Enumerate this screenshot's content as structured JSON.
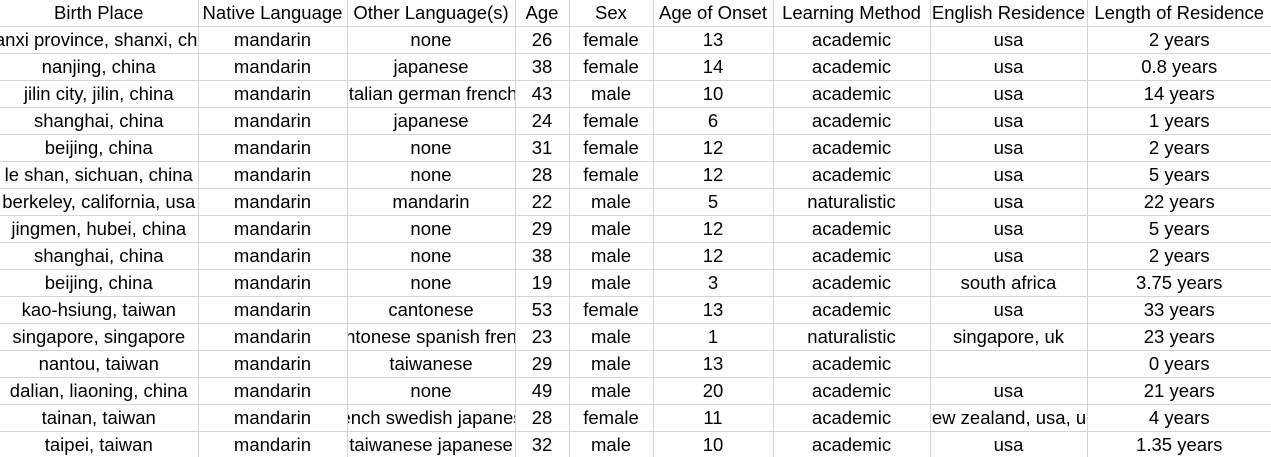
{
  "columns": [
    "Birth Place",
    "Native Language",
    "Other Language(s)",
    "Age",
    "Sex",
    "Age of Onset",
    "Learning Method",
    "English Residence",
    "Length of Residence"
  ],
  "rows": [
    [
      "shanxi province, shanxi, china",
      "mandarin",
      "none",
      "26",
      "female",
      "13",
      "academic",
      "usa",
      "2 years"
    ],
    [
      "nanjing, china",
      "mandarin",
      "japanese",
      "38",
      "female",
      "14",
      "academic",
      "usa",
      "0.8 years"
    ],
    [
      "jilin city, jilin, china",
      "mandarin",
      "italian german french",
      "43",
      "male",
      "10",
      "academic",
      "usa",
      "14 years"
    ],
    [
      "shanghai, china",
      "mandarin",
      "japanese",
      "24",
      "female",
      "6",
      "academic",
      "usa",
      "1 years"
    ],
    [
      "beijing, china",
      "mandarin",
      "none",
      "31",
      "female",
      "12",
      "academic",
      "usa",
      "2 years"
    ],
    [
      "le shan, sichuan, china",
      "mandarin",
      "none",
      "28",
      "female",
      "12",
      "academic",
      "usa",
      "5 years"
    ],
    [
      "berkeley, california, usa",
      "mandarin",
      "mandarin",
      "22",
      "male",
      "5",
      "naturalistic",
      "usa",
      "22 years"
    ],
    [
      "jingmen, hubei, china",
      "mandarin",
      "none",
      "29",
      "male",
      "12",
      "academic",
      "usa",
      "5 years"
    ],
    [
      "shanghai, china",
      "mandarin",
      "none",
      "38",
      "male",
      "12",
      "academic",
      "usa",
      "2 years"
    ],
    [
      "beijing, china",
      "mandarin",
      "none",
      "19",
      "male",
      "3",
      "academic",
      "south africa",
      "3.75 years"
    ],
    [
      "kao-hsiung, taiwan",
      "mandarin",
      "cantonese",
      "53",
      "female",
      "13",
      "academic",
      "usa",
      "33 years"
    ],
    [
      "singapore, singapore",
      "mandarin",
      "cantonese spanish french",
      "23",
      "male",
      "1",
      "naturalistic",
      "singapore, uk",
      "23 years"
    ],
    [
      "nantou, taiwan",
      "mandarin",
      "taiwanese",
      "29",
      "male",
      "13",
      "academic",
      "",
      "0 years"
    ],
    [
      "dalian, liaoning, china",
      "mandarin",
      "none",
      "49",
      "male",
      "20",
      "academic",
      "usa",
      "21 years"
    ],
    [
      "tainan, taiwan",
      "mandarin",
      "french swedish japanese",
      "28",
      "female",
      "11",
      "academic",
      "new zealand, usa, uk",
      "4 years"
    ],
    [
      "taipei, taiwan",
      "mandarin",
      "taiwanese japanese",
      "32",
      "male",
      "10",
      "academic",
      "usa",
      "1.35 years"
    ]
  ]
}
